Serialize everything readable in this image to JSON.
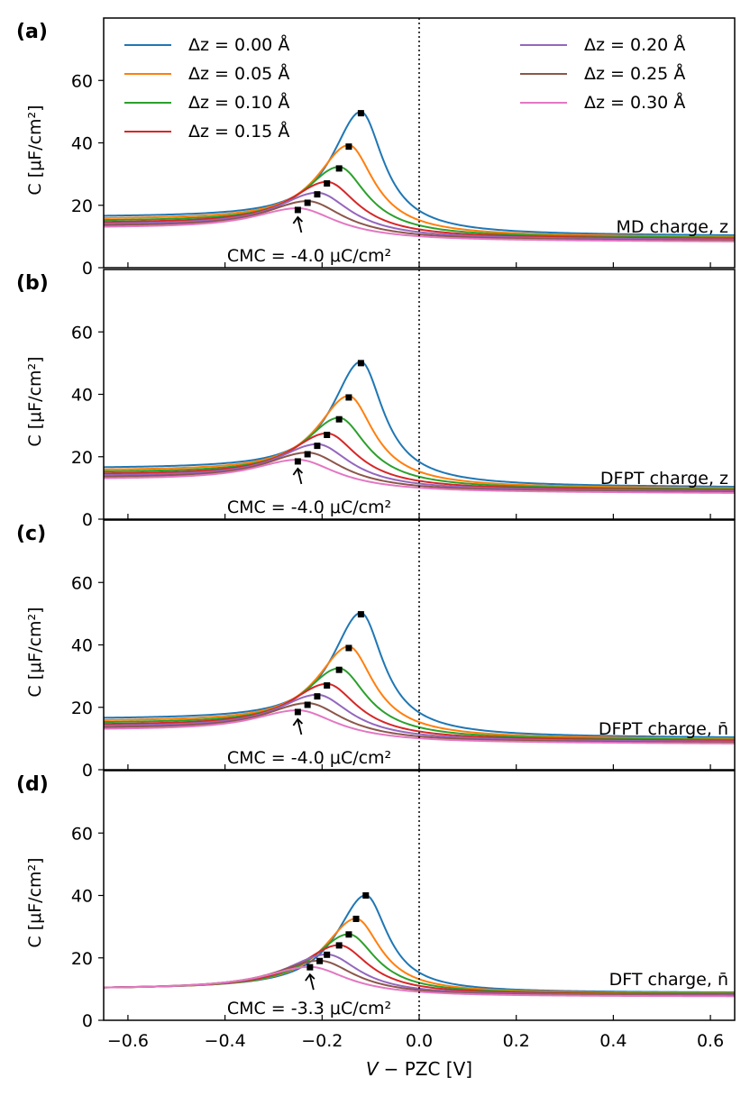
{
  "figure": {
    "xlabel_v": "V",
    "xlabel_rest": "−  PZC [V]"
  },
  "chart_data": [
    {
      "type": "line",
      "panel_label": "(a)",
      "annotation": "MD charge, z",
      "cmc_label": "CMC = -4.0 μC/cm²",
      "ylabel": "C [μF/cm²]",
      "xlim": [
        -0.65,
        0.65
      ],
      "ylim": [
        0,
        80
      ],
      "yticks": [
        0,
        20,
        40,
        60
      ],
      "xticks": [
        -0.6,
        -0.4,
        -0.2,
        0.0,
        0.2,
        0.4,
        0.6
      ],
      "vline_x": 0.0,
      "legend_placement": "top",
      "cmc_arrow": {
        "x": -0.25,
        "y": 18.5
      },
      "series": [
        {
          "name": "Δz = 0.00 Å",
          "color": "#1f77b4",
          "peak_x": -0.12,
          "peak_y": 49.5,
          "baseline_left": 15.2,
          "baseline_right": 10.2
        },
        {
          "name": "Δz = 0.05 Å",
          "color": "#ff7f0e",
          "peak_x": -0.145,
          "peak_y": 38.8,
          "baseline_left": 14.5,
          "baseline_right": 9.8
        },
        {
          "name": "Δz = 0.10 Å",
          "color": "#2ca02c",
          "peak_x": -0.165,
          "peak_y": 31.8,
          "baseline_left": 13.9,
          "baseline_right": 9.5
        },
        {
          "name": "Δz = 0.15 Å",
          "color": "#d62728",
          "peak_x": -0.19,
          "peak_y": 27.0,
          "baseline_left": 13.3,
          "baseline_right": 9.2
        },
        {
          "name": "Δz = 0.20 Å",
          "color": "#9467bd",
          "peak_x": -0.21,
          "peak_y": 23.5,
          "baseline_left": 12.8,
          "baseline_right": 8.9
        },
        {
          "name": "Δz = 0.25 Å",
          "color": "#8c564b",
          "peak_x": -0.23,
          "peak_y": 20.8,
          "baseline_left": 12.3,
          "baseline_right": 8.6
        },
        {
          "name": "Δz = 0.30 Å",
          "color": "#e377c2",
          "peak_x": -0.25,
          "peak_y": 18.5,
          "baseline_left": 11.8,
          "baseline_right": 8.3
        }
      ]
    },
    {
      "type": "line",
      "panel_label": "(b)",
      "annotation": "DFPT charge, z",
      "cmc_label": "CMC = -4.0 μC/cm²",
      "ylabel": "C [μF/cm²]",
      "xlim": [
        -0.65,
        0.65
      ],
      "ylim": [
        0,
        80
      ],
      "yticks": [
        0,
        20,
        40,
        60
      ],
      "xticks": [
        -0.6,
        -0.4,
        -0.2,
        0.0,
        0.2,
        0.4,
        0.6
      ],
      "vline_x": 0.0,
      "cmc_arrow": {
        "x": -0.25,
        "y": 18.5
      },
      "series": [
        {
          "name": "Δz = 0.00 Å",
          "color": "#1f77b4",
          "peak_x": -0.12,
          "peak_y": 50.0,
          "baseline_left": 15.2,
          "baseline_right": 10.2
        },
        {
          "name": "Δz = 0.05 Å",
          "color": "#ff7f0e",
          "peak_x": -0.145,
          "peak_y": 39.0,
          "baseline_left": 14.5,
          "baseline_right": 9.8
        },
        {
          "name": "Δz = 0.10 Å",
          "color": "#2ca02c",
          "peak_x": -0.165,
          "peak_y": 32.0,
          "baseline_left": 13.9,
          "baseline_right": 9.5
        },
        {
          "name": "Δz = 0.15 Å",
          "color": "#d62728",
          "peak_x": -0.19,
          "peak_y": 27.0,
          "baseline_left": 13.3,
          "baseline_right": 9.2
        },
        {
          "name": "Δz = 0.20 Å",
          "color": "#9467bd",
          "peak_x": -0.21,
          "peak_y": 23.5,
          "baseline_left": 12.8,
          "baseline_right": 8.9
        },
        {
          "name": "Δz = 0.25 Å",
          "color": "#8c564b",
          "peak_x": -0.23,
          "peak_y": 20.8,
          "baseline_left": 12.3,
          "baseline_right": 8.6
        },
        {
          "name": "Δz = 0.30 Å",
          "color": "#e377c2",
          "peak_x": -0.25,
          "peak_y": 18.5,
          "baseline_left": 11.8,
          "baseline_right": 8.3
        }
      ]
    },
    {
      "type": "line",
      "panel_label": "(c)",
      "annotation": "DFPT charge, n̄",
      "cmc_label": "CMC = -4.0 μC/cm²",
      "ylabel": "C [μF/cm²]",
      "xlim": [
        -0.65,
        0.65
      ],
      "ylim": [
        0,
        80
      ],
      "yticks": [
        0,
        20,
        40,
        60
      ],
      "xticks": [
        -0.6,
        -0.4,
        -0.2,
        0.0,
        0.2,
        0.4,
        0.6
      ],
      "vline_x": 0.0,
      "cmc_arrow": {
        "x": -0.25,
        "y": 18.5
      },
      "series": [
        {
          "name": "Δz = 0.00 Å",
          "color": "#1f77b4",
          "peak_x": -0.12,
          "peak_y": 49.8,
          "baseline_left": 15.2,
          "baseline_right": 10.2
        },
        {
          "name": "Δz = 0.05 Å",
          "color": "#ff7f0e",
          "peak_x": -0.145,
          "peak_y": 39.0,
          "baseline_left": 14.5,
          "baseline_right": 9.8
        },
        {
          "name": "Δz = 0.10 Å",
          "color": "#2ca02c",
          "peak_x": -0.165,
          "peak_y": 32.0,
          "baseline_left": 13.9,
          "baseline_right": 9.5
        },
        {
          "name": "Δz = 0.15 Å",
          "color": "#d62728",
          "peak_x": -0.19,
          "peak_y": 27.0,
          "baseline_left": 13.3,
          "baseline_right": 9.2
        },
        {
          "name": "Δz = 0.20 Å",
          "color": "#9467bd",
          "peak_x": -0.21,
          "peak_y": 23.5,
          "baseline_left": 12.8,
          "baseline_right": 8.9
        },
        {
          "name": "Δz = 0.25 Å",
          "color": "#8c564b",
          "peak_x": -0.23,
          "peak_y": 20.8,
          "baseline_left": 12.3,
          "baseline_right": 8.6
        },
        {
          "name": "Δz = 0.30 Å",
          "color": "#e377c2",
          "peak_x": -0.25,
          "peak_y": 18.5,
          "baseline_left": 11.8,
          "baseline_right": 8.3
        }
      ]
    },
    {
      "type": "line",
      "panel_label": "(d)",
      "annotation": "DFT charge, n̄",
      "cmc_label": "CMC = -3.3 μC/cm²",
      "ylabel": "C [μF/cm²]",
      "xlabel": "V −  PZC [V]",
      "xlim": [
        -0.65,
        0.65
      ],
      "ylim": [
        0,
        80
      ],
      "yticks": [
        0,
        20,
        40,
        60
      ],
      "xticks": [
        -0.6,
        -0.4,
        -0.2,
        0.0,
        0.2,
        0.4,
        0.6
      ],
      "xticklabels": [
        "−0.6",
        "−0.4",
        "−0.2",
        "0.0",
        "0.2",
        "0.4",
        "0.6"
      ],
      "vline_x": 0.0,
      "cmc_arrow": {
        "x": -0.225,
        "y": 17.0
      },
      "series": [
        {
          "name": "Δz = 0.00 Å",
          "color": "#1f77b4",
          "peak_x": -0.11,
          "peak_y": 40.0,
          "baseline_left": 9.8,
          "baseline_right": 8.8
        },
        {
          "name": "Δz = 0.05 Å",
          "color": "#ff7f0e",
          "peak_x": -0.13,
          "peak_y": 32.5,
          "baseline_left": 9.8,
          "baseline_right": 8.6
        },
        {
          "name": "Δz = 0.10 Å",
          "color": "#2ca02c",
          "peak_x": -0.145,
          "peak_y": 27.5,
          "baseline_left": 9.8,
          "baseline_right": 8.4
        },
        {
          "name": "Δz = 0.15 Å",
          "color": "#d62728",
          "peak_x": -0.165,
          "peak_y": 24.0,
          "baseline_left": 9.8,
          "baseline_right": 8.2
        },
        {
          "name": "Δz = 0.20 Å",
          "color": "#9467bd",
          "peak_x": -0.19,
          "peak_y": 21.0,
          "baseline_left": 9.8,
          "baseline_right": 8.0
        },
        {
          "name": "Δz = 0.25 Å",
          "color": "#8c564b",
          "peak_x": -0.205,
          "peak_y": 19.0,
          "baseline_left": 9.8,
          "baseline_right": 7.8
        },
        {
          "name": "Δz = 0.30 Å",
          "color": "#e377c2",
          "peak_x": -0.225,
          "peak_y": 17.0,
          "baseline_left": 9.8,
          "baseline_right": 7.6
        }
      ]
    }
  ]
}
